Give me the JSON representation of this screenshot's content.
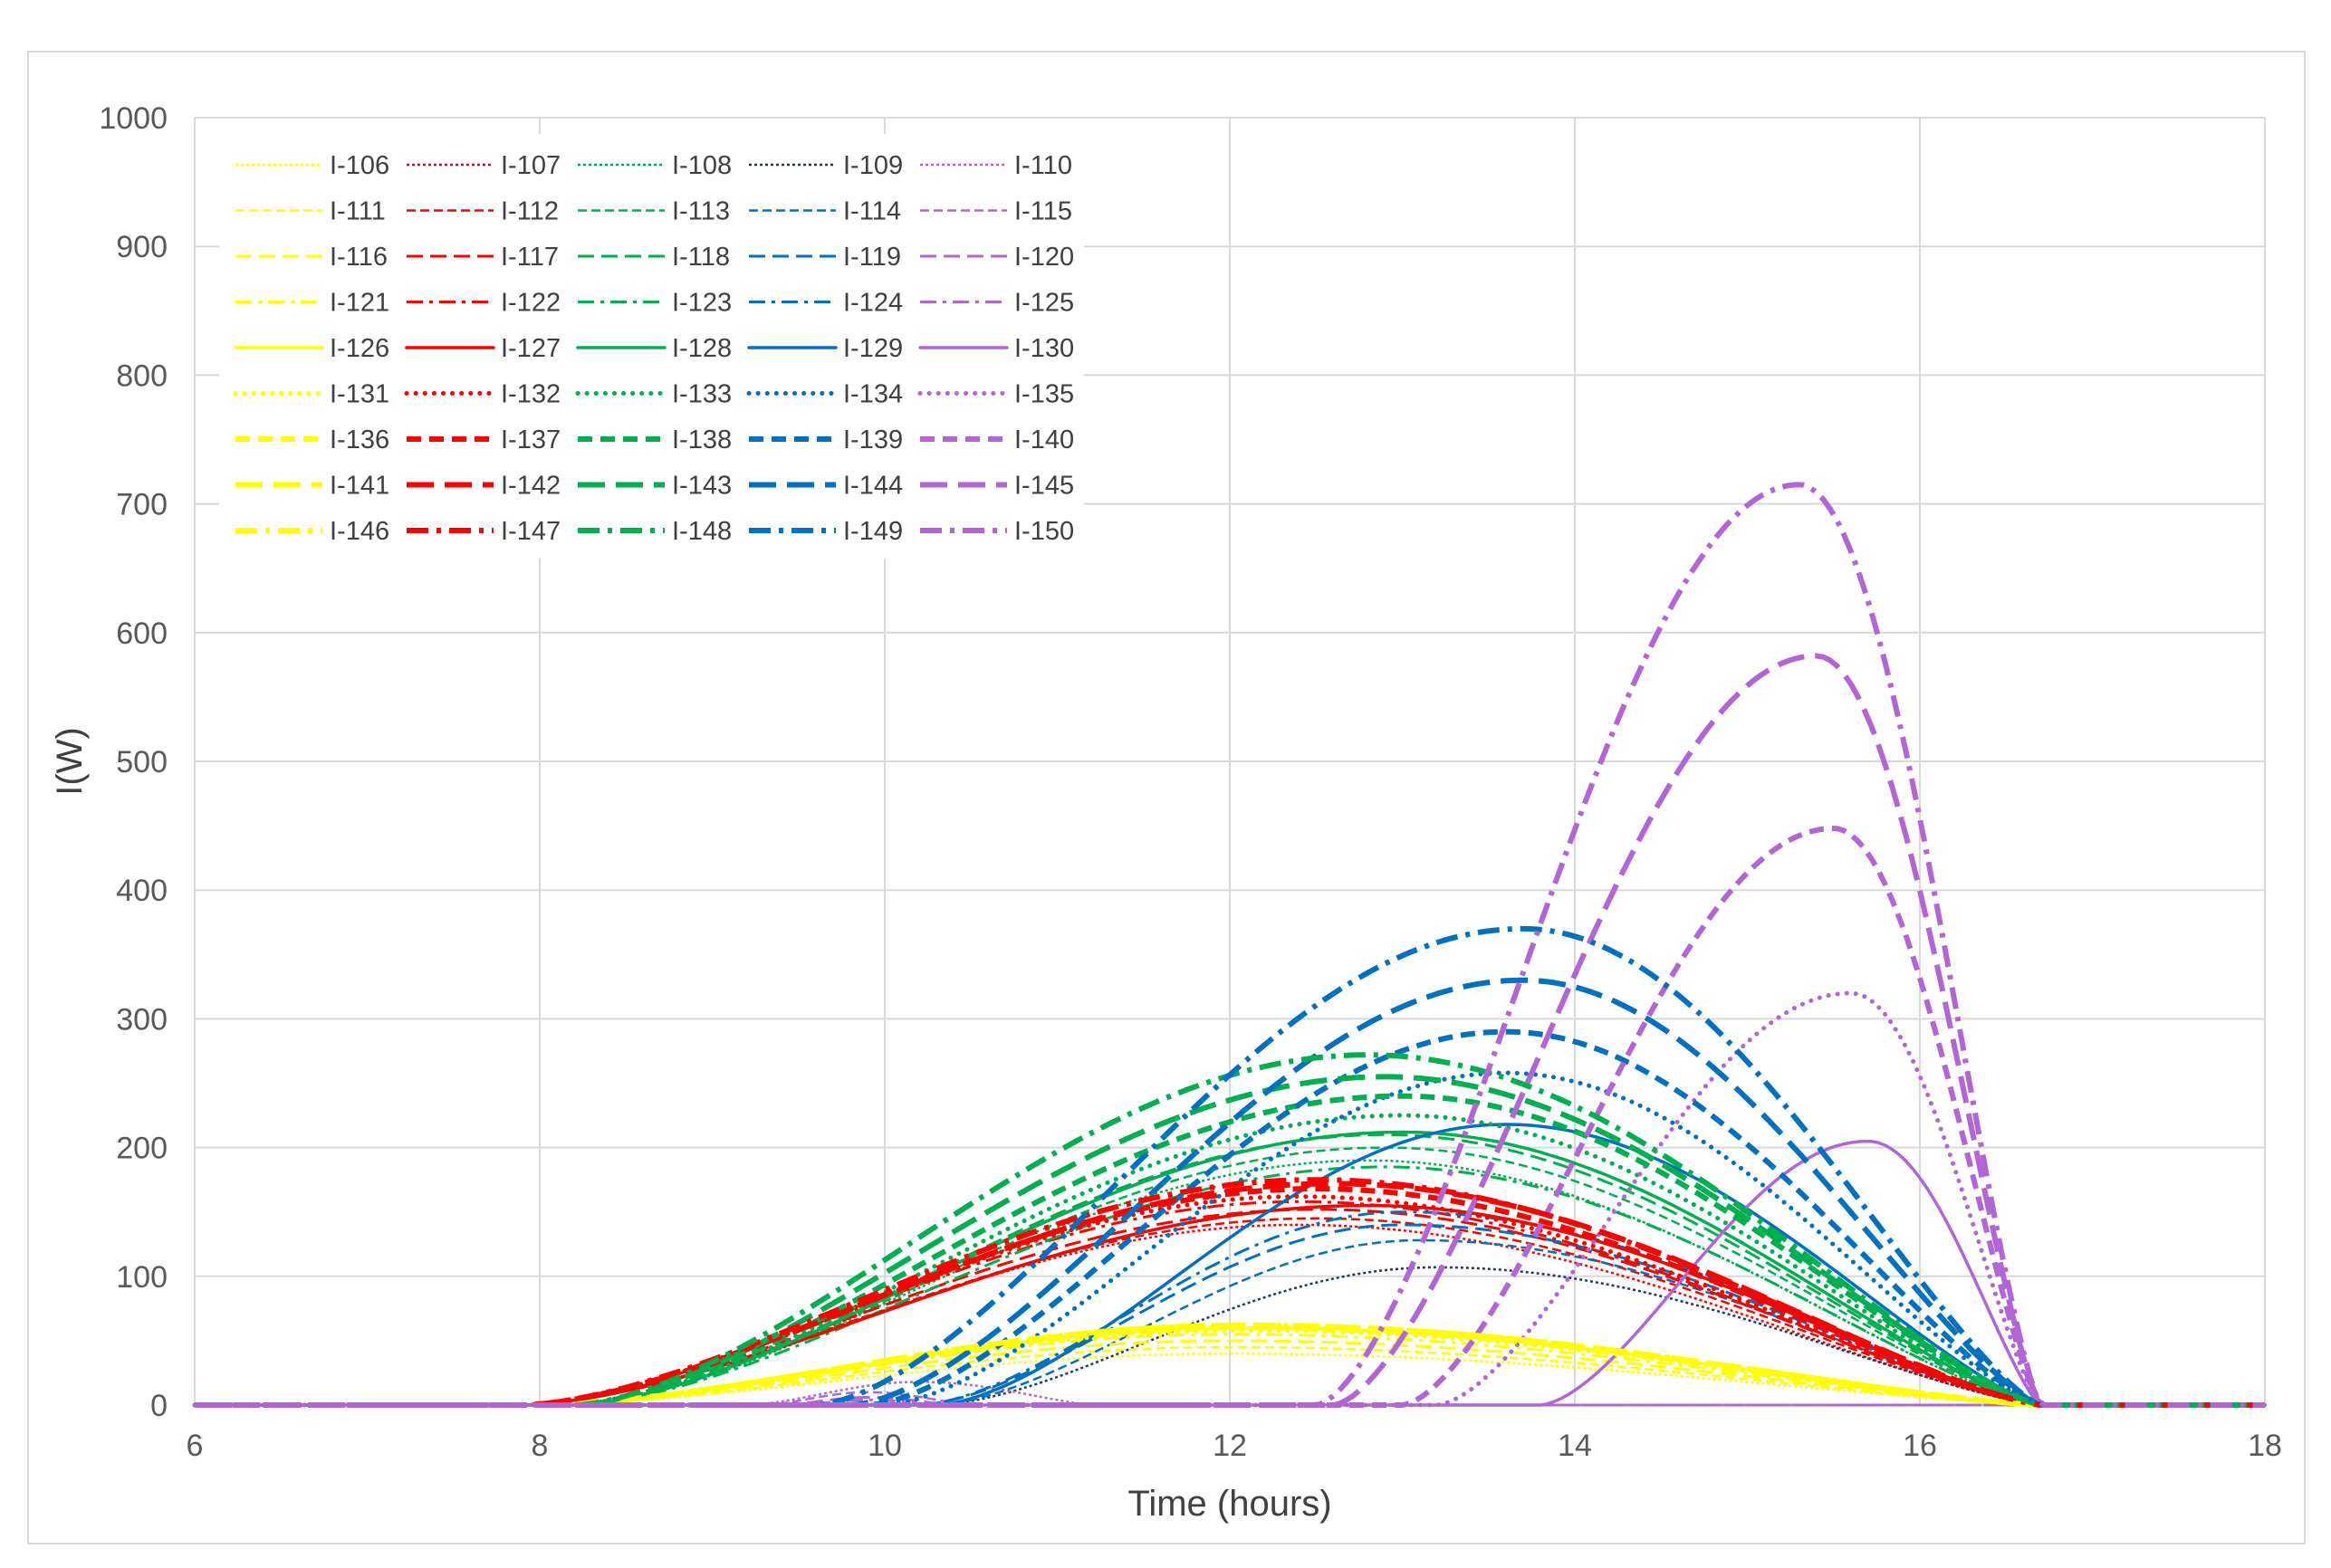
{
  "chart_data": {
    "type": "line",
    "title": "",
    "xlabel": "Time (hours)",
    "ylabel": "I(W)",
    "xlim": [
      6,
      18
    ],
    "ylim": [
      0,
      1000
    ],
    "xticks": [
      6,
      8,
      10,
      12,
      14,
      16,
      18
    ],
    "yticks": [
      0,
      100,
      200,
      300,
      400,
      500,
      600,
      700,
      800,
      900,
      1000
    ],
    "xtick_labels": [
      "6",
      "8",
      "10",
      "12",
      "14",
      "16",
      "18"
    ],
    "ytick_labels": [
      "0",
      "100",
      "200",
      "300",
      "400",
      "500",
      "600",
      "700",
      "800",
      "900",
      "1000"
    ],
    "grid": true,
    "legend_position": "top-left",
    "colors": {
      "yellow": "#ffff00",
      "red": "#ff0000",
      "green": "#00b050",
      "navy": "#1f3864",
      "blue": "#0070c0",
      "purple": "#b266d6",
      "grid": "#d9d9d9"
    },
    "styles": [
      "dotted",
      "dashed-short",
      "dashed",
      "dash-dot",
      "solid",
      "round-dot",
      "dashed-bold",
      "long-dash-bold",
      "dash-dot-bold"
    ],
    "series_model": "each series is a smooth daily curve: 0 before start, rising to peak at peak_time, falling to 0 at end (hours, W)",
    "series": [
      {
        "name": "I-106",
        "color": "yellow",
        "style": "dotted",
        "start": 8.0,
        "peak_time": 12.0,
        "peak": 40,
        "end": 16.7
      },
      {
        "name": "I-107",
        "color": "red",
        "style": "dotted",
        "start": 7.9,
        "peak_time": 12.4,
        "peak": 140,
        "end": 16.7
      },
      {
        "name": "I-108",
        "color": "green",
        "style": "dotted",
        "start": 8.2,
        "peak_time": 12.8,
        "peak": 190,
        "end": 16.7
      },
      {
        "name": "I-109",
        "color": "navy",
        "style": "dotted",
        "start": 10.3,
        "peak_time": 13.2,
        "peak": 107,
        "end": 16.7
      },
      {
        "name": "I-110",
        "color": "purple",
        "style": "dotted",
        "start": 9.2,
        "peak_time": 10.2,
        "peak": 18,
        "end": 11.2
      },
      {
        "name": "I-111",
        "color": "yellow",
        "style": "dashed-short",
        "start": 8.0,
        "peak_time": 12.0,
        "peak": 45,
        "end": 16.7
      },
      {
        "name": "I-112",
        "color": "red",
        "style": "dashed-short",
        "start": 7.9,
        "peak_time": 12.5,
        "peak": 145,
        "end": 16.7
      },
      {
        "name": "I-113",
        "color": "green",
        "style": "dashed-short",
        "start": 8.2,
        "peak_time": 12.9,
        "peak": 200,
        "end": 16.7
      },
      {
        "name": "I-114",
        "color": "blue",
        "style": "dashed-short",
        "start": 10.3,
        "peak_time": 13.1,
        "peak": 128,
        "end": 16.7
      },
      {
        "name": "I-115",
        "color": "purple",
        "style": "dashed-short",
        "start": 9.3,
        "peak_time": 9.9,
        "peak": 10,
        "end": 10.5
      },
      {
        "name": "I-116",
        "color": "yellow",
        "style": "dashed",
        "start": 8.0,
        "peak_time": 12.0,
        "peak": 50,
        "end": 16.7
      },
      {
        "name": "I-117",
        "color": "red",
        "style": "dashed",
        "start": 7.9,
        "peak_time": 12.5,
        "peak": 152,
        "end": 16.7
      },
      {
        "name": "I-118",
        "color": "green",
        "style": "dashed",
        "start": 8.2,
        "peak_time": 12.9,
        "peak": 210,
        "end": 16.7
      },
      {
        "name": "I-119",
        "color": "blue",
        "style": "dashed",
        "start": 10.2,
        "peak_time": 13.0,
        "peak": 140,
        "end": 16.7
      },
      {
        "name": "I-120",
        "color": "purple",
        "style": "dashed",
        "start": 9.4,
        "peak_time": 9.9,
        "peak": 6,
        "end": 10.4
      },
      {
        "name": "I-121",
        "color": "yellow",
        "style": "dash-dot",
        "start": 8.0,
        "peak_time": 12.0,
        "peak": 55,
        "end": 16.7
      },
      {
        "name": "I-122",
        "color": "red",
        "style": "dash-dot",
        "start": 7.9,
        "peak_time": 12.4,
        "peak": 158,
        "end": 16.7
      },
      {
        "name": "I-123",
        "color": "green",
        "style": "dash-dot",
        "start": 8.2,
        "peak_time": 12.9,
        "peak": 185,
        "end": 16.7
      },
      {
        "name": "I-124",
        "color": "blue",
        "style": "dash-dot",
        "start": 10.2,
        "peak_time": 13.0,
        "peak": 150,
        "end": 16.7
      },
      {
        "name": "I-125",
        "color": "purple",
        "style": "dash-dot",
        "start": 9.5,
        "peak_time": 9.9,
        "peak": 4,
        "end": 10.3
      },
      {
        "name": "I-126",
        "color": "yellow",
        "style": "solid",
        "start": 8.0,
        "peak_time": 12.1,
        "peak": 60,
        "end": 16.7
      },
      {
        "name": "I-127",
        "color": "red",
        "style": "solid",
        "start": 7.9,
        "peak_time": 12.8,
        "peak": 155,
        "end": 16.7
      },
      {
        "name": "I-128",
        "color": "green",
        "style": "solid",
        "start": 8.2,
        "peak_time": 13.0,
        "peak": 212,
        "end": 16.7
      },
      {
        "name": "I-129",
        "color": "blue",
        "style": "solid",
        "start": 10.3,
        "peak_time": 13.6,
        "peak": 218,
        "end": 16.7
      },
      {
        "name": "I-130",
        "color": "purple",
        "style": "solid",
        "start": 13.8,
        "peak_time": 15.7,
        "peak": 205,
        "end": 16.7
      },
      {
        "name": "I-131",
        "color": "yellow",
        "style": "round-dot",
        "start": 8.0,
        "peak_time": 12.1,
        "peak": 58,
        "end": 16.7
      },
      {
        "name": "I-132",
        "color": "red",
        "style": "round-dot",
        "start": 7.9,
        "peak_time": 12.4,
        "peak": 162,
        "end": 16.7
      },
      {
        "name": "I-133",
        "color": "green",
        "style": "round-dot",
        "start": 8.2,
        "peak_time": 13.0,
        "peak": 225,
        "end": 16.7
      },
      {
        "name": "I-134",
        "color": "blue",
        "style": "round-dot",
        "start": 10.0,
        "peak_time": 13.6,
        "peak": 258,
        "end": 16.7
      },
      {
        "name": "I-135",
        "color": "purple",
        "style": "round-dot",
        "start": 13.2,
        "peak_time": 15.6,
        "peak": 320,
        "end": 16.7
      },
      {
        "name": "I-136",
        "color": "yellow",
        "style": "dashed-bold",
        "start": 8.0,
        "peak_time": 12.1,
        "peak": 60,
        "end": 16.7
      },
      {
        "name": "I-137",
        "color": "red",
        "style": "dashed-bold",
        "start": 7.9,
        "peak_time": 12.5,
        "peak": 168,
        "end": 16.7
      },
      {
        "name": "I-138",
        "color": "green",
        "style": "dashed-bold",
        "start": 8.2,
        "peak_time": 13.0,
        "peak": 240,
        "end": 16.7
      },
      {
        "name": "I-139",
        "color": "blue",
        "style": "dashed-bold",
        "start": 9.9,
        "peak_time": 13.6,
        "peak": 290,
        "end": 16.7
      },
      {
        "name": "I-140",
        "color": "purple",
        "style": "dashed-bold",
        "start": 13.0,
        "peak_time": 15.5,
        "peak": 448,
        "end": 16.7
      },
      {
        "name": "I-141",
        "color": "yellow",
        "style": "long-dash-bold",
        "start": 8.0,
        "peak_time": 12.1,
        "peak": 62,
        "end": 16.7
      },
      {
        "name": "I-142",
        "color": "red",
        "style": "long-dash-bold",
        "start": 7.9,
        "peak_time": 12.6,
        "peak": 172,
        "end": 16.7
      },
      {
        "name": "I-143",
        "color": "green",
        "style": "long-dash-bold",
        "start": 8.2,
        "peak_time": 12.9,
        "peak": 255,
        "end": 16.7
      },
      {
        "name": "I-144",
        "color": "blue",
        "style": "long-dash-bold",
        "start": 9.8,
        "peak_time": 13.7,
        "peak": 330,
        "end": 16.7
      },
      {
        "name": "I-145",
        "color": "purple",
        "style": "long-dash-bold",
        "start": 12.6,
        "peak_time": 15.4,
        "peak": 582,
        "end": 16.7
      },
      {
        "name": "I-146",
        "color": "yellow",
        "style": "dash-dot-bold",
        "start": 8.0,
        "peak_time": 12.1,
        "peak": 62,
        "end": 16.7
      },
      {
        "name": "I-147",
        "color": "red",
        "style": "dash-dot-bold",
        "start": 7.9,
        "peak_time": 12.5,
        "peak": 175,
        "end": 16.7
      },
      {
        "name": "I-148",
        "color": "green",
        "style": "dash-dot-bold",
        "start": 8.2,
        "peak_time": 12.8,
        "peak": 272,
        "end": 16.7
      },
      {
        "name": "I-149",
        "color": "blue",
        "style": "dash-dot-bold",
        "start": 9.6,
        "peak_time": 13.7,
        "peak": 370,
        "end": 16.7
      },
      {
        "name": "I-150",
        "color": "purple",
        "style": "dash-dot-bold",
        "start": 12.5,
        "peak_time": 15.3,
        "peak": 715,
        "end": 16.7
      }
    ]
  }
}
